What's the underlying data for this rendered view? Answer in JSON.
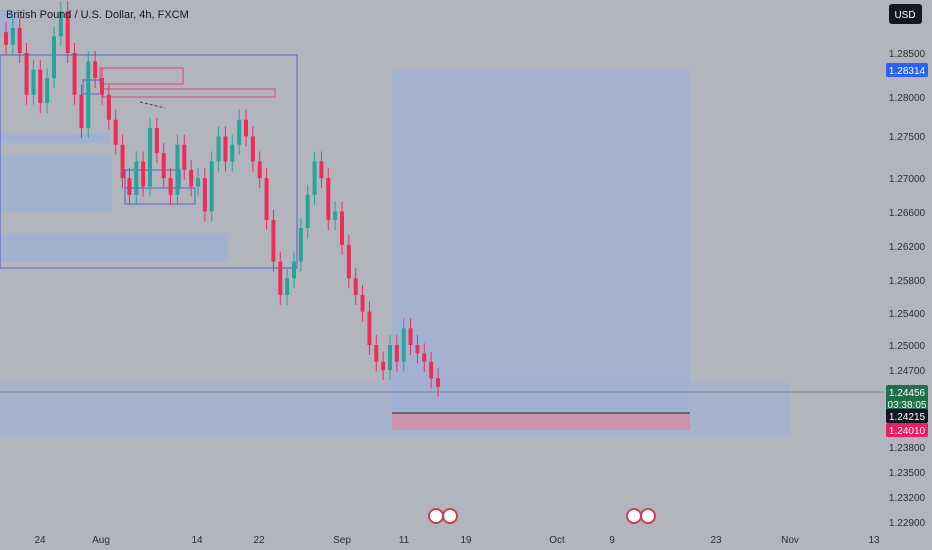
{
  "header": {
    "symbol_title": "British Pound / U.S. Dollar, 4h, FXCM",
    "currency_button": "USD"
  },
  "colors": {
    "background": "#b2b5be",
    "up": "#26a69a",
    "down": "#ef2b5a",
    "zone_blue": "#9fb0d6",
    "stop_red": "#d58aa6",
    "tp_blue": "#2962ff",
    "current_green": "#1f6f4a",
    "stop_pink": "#e91e63"
  },
  "chart_data": {
    "type": "candlestick",
    "title": "British Pound / U.S. Dollar, 4h, FXCM",
    "y_ticks": [
      "1.28500",
      "1.28000",
      "1.27500",
      "1.27000",
      "1.26600",
      "1.26200",
      "1.25800",
      "1.25400",
      "1.25000",
      "1.24700",
      "1.23800",
      "1.23500",
      "1.23200",
      "1.22900"
    ],
    "x_ticks": [
      "24",
      "Aug",
      "14",
      "22",
      "Sep",
      "11",
      "19",
      "Oct",
      "9",
      "23",
      "Nov",
      "13"
    ],
    "price_tags": {
      "take_profit": "1.28314",
      "current_price": "1.24456",
      "countdown": "03:38:05",
      "entry": "1.24215",
      "stop_loss": "1.24010"
    },
    "series_close": [
      1.286,
      1.288,
      1.285,
      1.28,
      1.283,
      1.279,
      1.282,
      1.287,
      1.29,
      1.285,
      1.28,
      1.276,
      1.284,
      1.282,
      1.28,
      1.277,
      1.274,
      1.27,
      1.268,
      1.272,
      1.269,
      1.276,
      1.273,
      1.27,
      1.268,
      1.274,
      1.271,
      1.269,
      1.27,
      1.266,
      1.272,
      1.275,
      1.272,
      1.274,
      1.277,
      1.275,
      1.272,
      1.27,
      1.265,
      1.26,
      1.256,
      1.258,
      1.26,
      1.264,
      1.268,
      1.272,
      1.27,
      1.265,
      1.266,
      1.262,
      1.258,
      1.256,
      1.254,
      1.25,
      1.248,
      1.247,
      1.25,
      1.248,
      1.252,
      1.25,
      1.249,
      1.248,
      1.246,
      1.245
    ]
  }
}
